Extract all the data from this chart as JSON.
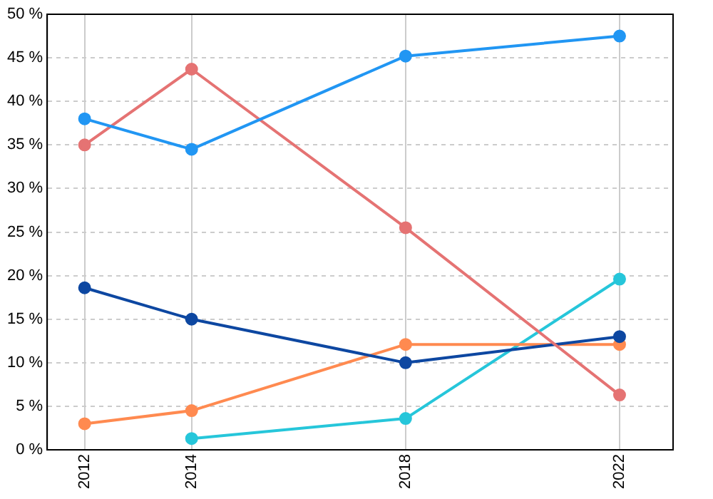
{
  "chart_data": {
    "type": "line",
    "x": [
      2012,
      2014,
      2018,
      2022
    ],
    "xlim": [
      2011.3,
      2023
    ],
    "xticks": [
      2012,
      2014,
      2018,
      2022
    ],
    "ylim": [
      0,
      50
    ],
    "yticks": [
      {
        "value": 0,
        "label": "0 %"
      },
      {
        "value": 5,
        "label": "5 %"
      },
      {
        "value": 10,
        "label": "10 %"
      },
      {
        "value": 15,
        "label": "15 %"
      },
      {
        "value": 20,
        "label": "20 %"
      },
      {
        "value": 25,
        "label": "25 %"
      },
      {
        "value": 30,
        "label": "30 %"
      },
      {
        "value": 35,
        "label": "35 %"
      },
      {
        "value": 40,
        "label": "40 %"
      },
      {
        "value": 45,
        "label": "45 %"
      },
      {
        "value": 50,
        "label": "50 %"
      }
    ],
    "grid": true,
    "legend": false,
    "marker": "circle",
    "line_style": "solid",
    "series": [
      {
        "color": "#2196f3",
        "values": [
          38.0,
          34.5,
          45.2,
          47.5
        ]
      },
      {
        "color": "#e57373",
        "values": [
          35.0,
          43.7,
          25.5,
          6.3
        ]
      },
      {
        "color": "#0d47a1",
        "values": [
          18.6,
          15.0,
          10.0,
          13.0
        ]
      },
      {
        "color": "#ff8a50",
        "values": [
          3.0,
          4.5,
          12.1,
          12.1
        ]
      },
      {
        "color": "#26c6da",
        "values": [
          null,
          1.3,
          3.6,
          19.6
        ]
      }
    ]
  }
}
